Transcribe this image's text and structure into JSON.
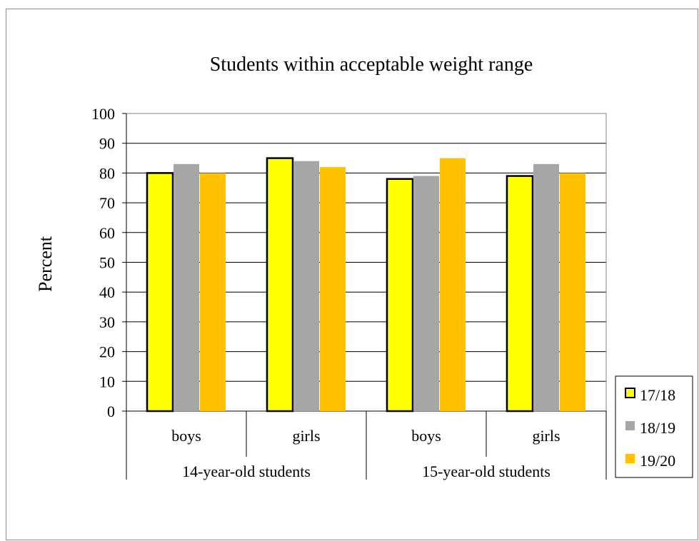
{
  "chart_data": {
    "type": "bar",
    "title": "Students within acceptable weight range",
    "ylabel": "Percent",
    "xlabel": "",
    "ylim": [
      0,
      100
    ],
    "yticks": [
      0,
      10,
      20,
      30,
      40,
      50,
      60,
      70,
      80,
      90,
      100
    ],
    "grid": true,
    "legend_position": "bottom-right",
    "categories": [
      "boys",
      "girls",
      "boys",
      "girls"
    ],
    "groups": [
      {
        "label": "14-year-old students",
        "categories": [
          "boys",
          "girls"
        ]
      },
      {
        "label": "15-year-old students",
        "categories": [
          "boys",
          "girls"
        ]
      }
    ],
    "series": [
      {
        "name": "17/18",
        "color": "#ffff00",
        "outline": "#000000",
        "values": [
          80,
          85,
          78,
          79
        ]
      },
      {
        "name": "18/19",
        "color": "#a6a6a6",
        "outline": "none",
        "values": [
          83,
          84,
          79,
          83
        ]
      },
      {
        "name": "19/20",
        "color": "#ffc000",
        "outline": "none",
        "values": [
          80,
          82,
          85,
          80
        ]
      }
    ]
  }
}
